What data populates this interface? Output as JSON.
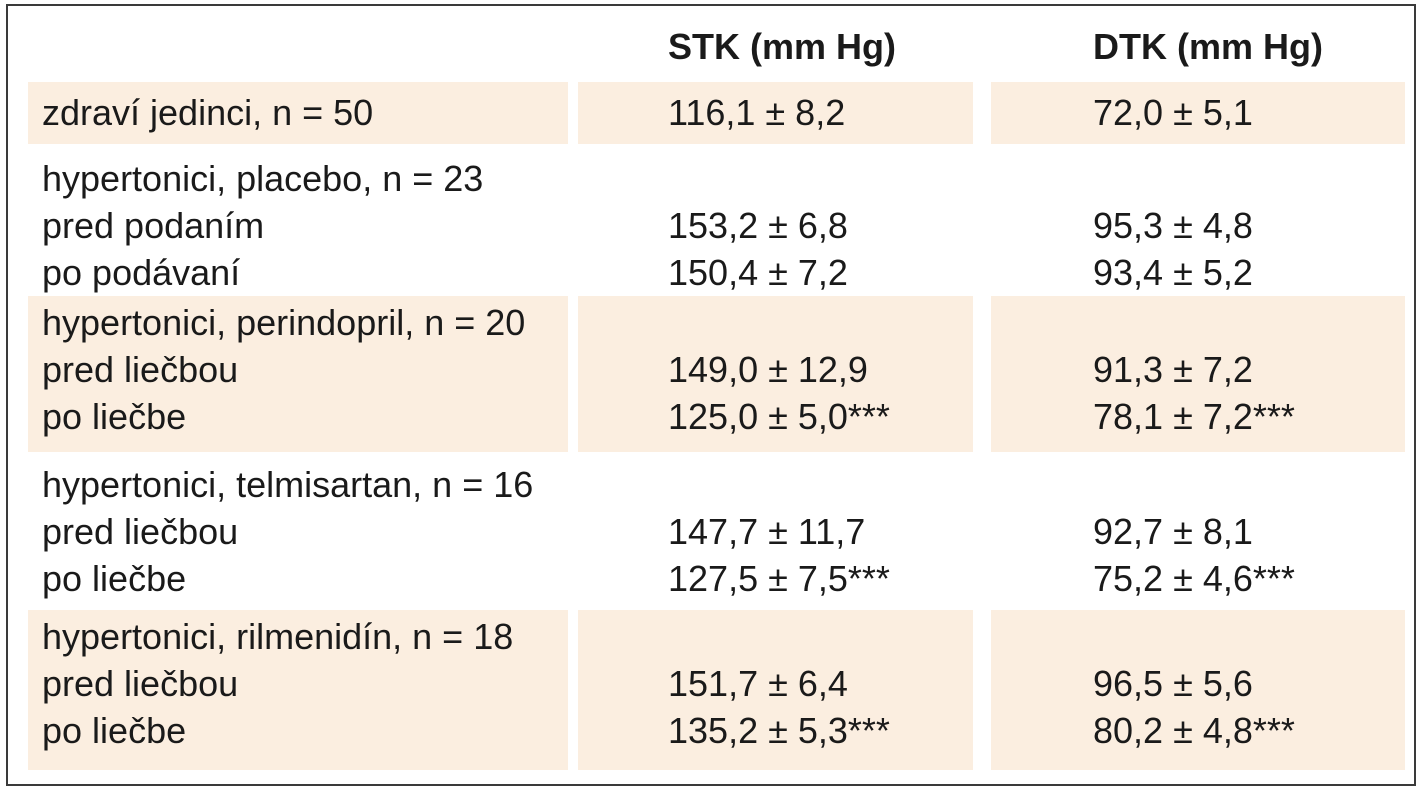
{
  "colors": {
    "shade": "#fbeee0",
    "border": "#3a3a3a",
    "text": "#1a1a1a"
  },
  "header": {
    "stk": "STK (mm Hg)",
    "dtk": "DTK (mm Hg)"
  },
  "rows": [
    {
      "group": "zdraví jedinci, n = 50",
      "lines": [
        {
          "label": "",
          "stk": "116,1 ± 8,2",
          "dtk": "72,0 ± 5,1"
        }
      ]
    },
    {
      "group": "hypertonici, placebo, n = 23",
      "lines": [
        {
          "label": "pred podaním",
          "stk": "153,2 ± 6,8",
          "dtk": "95,3 ± 4,8"
        },
        {
          "label": "po podávaní",
          "stk": "150,4 ± 7,2",
          "dtk": "93,4 ± 5,2"
        }
      ]
    },
    {
      "group": "hypertonici, perindopril, n = 20",
      "lines": [
        {
          "label": "pred liečbou",
          "stk": "149,0 ± 12,9",
          "dtk": "91,3 ± 7,2"
        },
        {
          "label": "po liečbe",
          "stk": "125,0 ± 5,0***",
          "dtk": "78,1 ± 7,2***"
        }
      ]
    },
    {
      "group": "hypertonici, telmisartan, n = 16",
      "lines": [
        {
          "label": "pred liečbou",
          "stk": "147,7 ± 11,7",
          "dtk": "92,7 ± 8,1"
        },
        {
          "label": "po liečbe",
          "stk": "127,5 ± 7,5***",
          "dtk": "75,2 ± 4,6***"
        }
      ]
    },
    {
      "group": "hypertonici, rilmenidín, n = 18",
      "lines": [
        {
          "label": "pred liečbou",
          "stk": "151,7 ± 6,4",
          "dtk": "96,5 ± 5,6"
        },
        {
          "label": "po liečbe",
          "stk": "135,2 ± 5,3***",
          "dtk": "80,2 ± 4,8***"
        }
      ]
    }
  ]
}
